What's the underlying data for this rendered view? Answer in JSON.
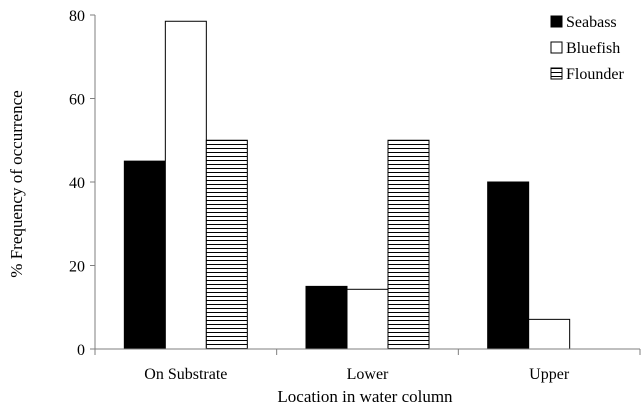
{
  "chart_data": {
    "type": "bar",
    "title": "",
    "xlabel": "Location in water column",
    "ylabel": "% Frequency of occurrence",
    "categories": [
      "On Substrate",
      "Lower",
      "Upper"
    ],
    "series": [
      {
        "name": "Seabass",
        "values": [
          45,
          15,
          40
        ],
        "fill": "solid-black"
      },
      {
        "name": "Bluefish",
        "values": [
          78.5,
          14.3,
          7.1
        ],
        "fill": "white"
      },
      {
        "name": "Flounder",
        "values": [
          50,
          50,
          0
        ],
        "fill": "horizontal-stripes"
      }
    ],
    "ylim": [
      0,
      80
    ],
    "yticks": [
      "0",
      "20",
      "40",
      "60",
      "80"
    ],
    "grid": false,
    "legend_position": "top-right"
  },
  "colors": {
    "bar_dark": "#000000",
    "bar_light": "#ffffff",
    "axis": "#7f7f7f"
  }
}
